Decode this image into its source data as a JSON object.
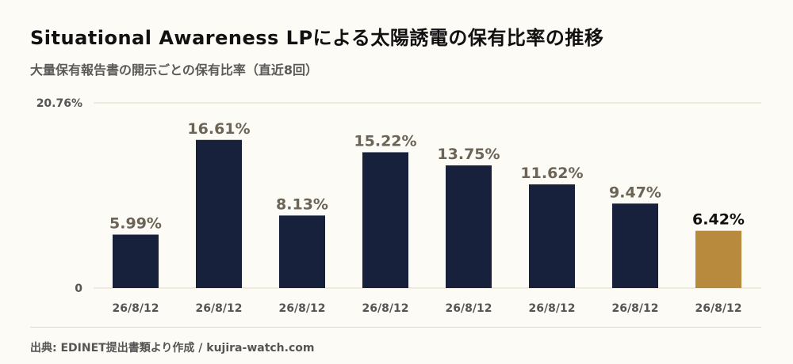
{
  "title": "Situational Awareness LPによる太陽誘電の保有比率の推移",
  "subtitle": "大量保有報告書の開示ごとの保有比率（直近8回）",
  "source": "出典: EDINET提出書類より作成 / kujira-watch.com",
  "colors": {
    "bar": "#17213b",
    "highlight": "#b88a3e",
    "label": "#6b6457",
    "highlight_label": "#111111",
    "grid": "#ded9c8",
    "axis_text": "#555555"
  },
  "chart_data": {
    "type": "bar",
    "title": "Situational Awareness LPによる太陽誘電の保有比率の推移",
    "subtitle": "大量保有報告書の開示ごとの保有比率（直近8回）",
    "categories": [
      "26/8/12",
      "26/8/12",
      "26/8/12",
      "26/8/12",
      "26/8/12",
      "26/8/12",
      "26/8/12",
      "26/8/12"
    ],
    "values": [
      5.99,
      16.61,
      8.13,
      15.22,
      13.75,
      11.62,
      9.47,
      6.42
    ],
    "value_labels": [
      "5.99%",
      "16.61%",
      "8.13%",
      "15.22%",
      "13.75%",
      "11.62%",
      "9.47%",
      "6.42%"
    ],
    "ylim": [
      0,
      20.76
    ],
    "y_tick_labels": [
      "0",
      "20.76%"
    ],
    "highlight_index": 7,
    "xlabel": "",
    "ylabel": "",
    "grid": true,
    "legend": "none"
  }
}
